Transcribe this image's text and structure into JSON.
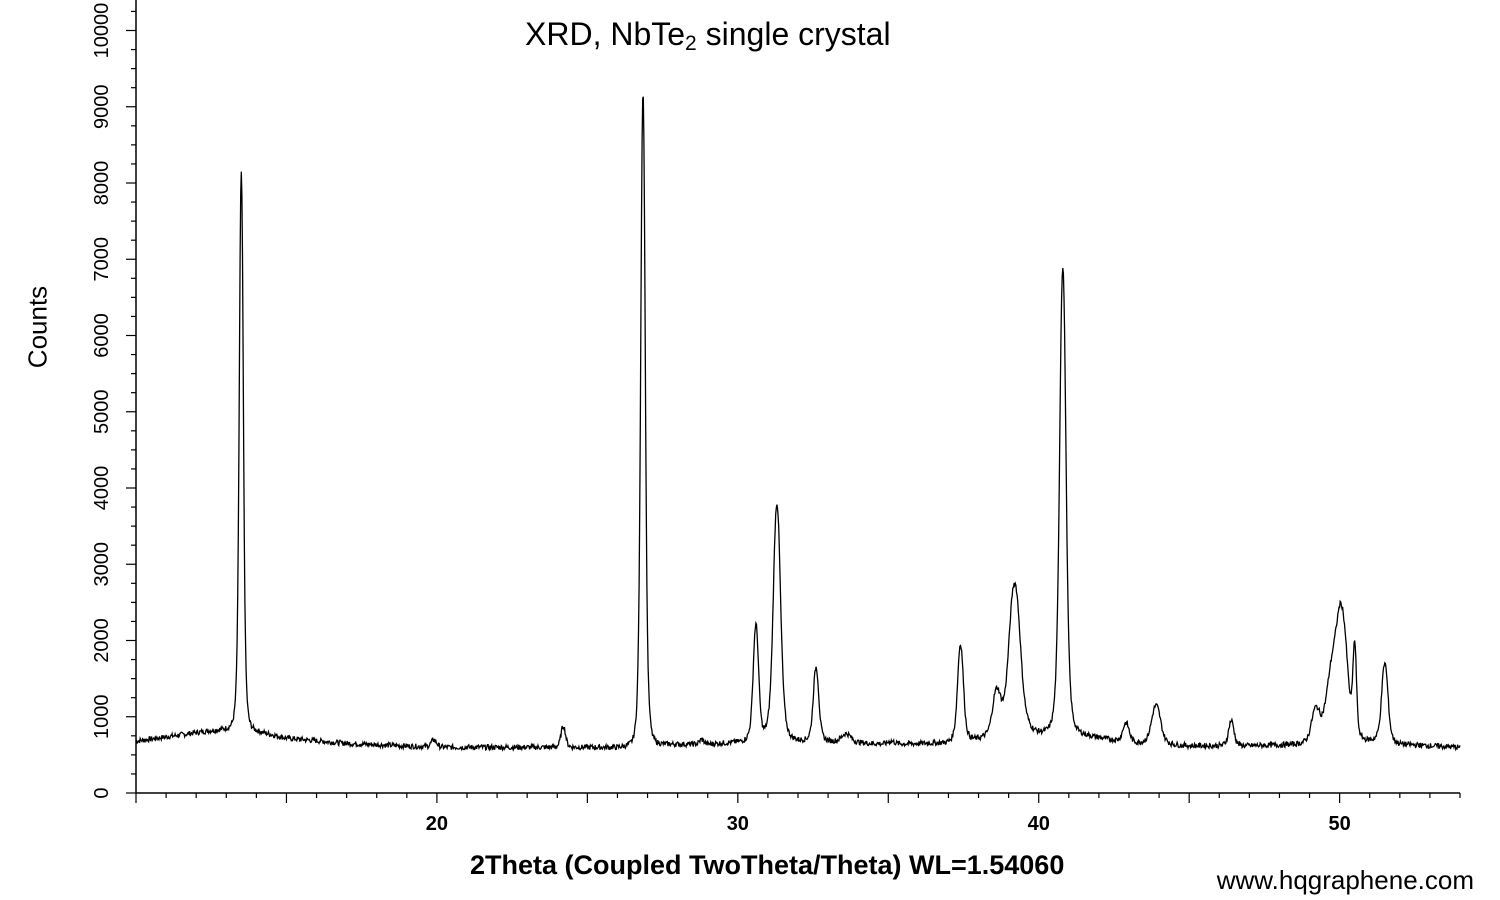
{
  "chart_data": {
    "type": "line",
    "title_main": "XRD, NbTe",
    "title_sub": "2",
    "title_rest": " single crystal",
    "xlabel": "2Theta (Coupled TwoTheta/Theta) WL=1.54060",
    "ylabel": "Counts",
    "xlim": [
      10,
      54
    ],
    "ylim": [
      0,
      10400
    ],
    "x_ticks": [
      20,
      30,
      40,
      50
    ],
    "y_ticks": [
      0,
      1000,
      2000,
      3000,
      4000,
      5000,
      6000,
      7000,
      8000,
      9000,
      10000
    ],
    "line_color": "#000000",
    "grid": false,
    "baseline": [
      [
        10,
        680
      ],
      [
        12.5,
        820
      ],
      [
        13.5,
        860
      ],
      [
        15,
        720
      ],
      [
        17,
        650
      ],
      [
        20,
        600
      ],
      [
        24,
        600
      ],
      [
        26,
        600
      ],
      [
        27,
        640
      ],
      [
        29,
        640
      ],
      [
        31,
        700
      ],
      [
        33,
        680
      ],
      [
        35,
        640
      ],
      [
        37,
        660
      ],
      [
        39,
        760
      ],
      [
        41,
        800
      ],
      [
        43,
        660
      ],
      [
        45,
        620
      ],
      [
        47,
        620
      ],
      [
        49,
        640
      ],
      [
        51,
        680
      ],
      [
        52,
        640
      ],
      [
        54,
        600
      ]
    ],
    "peaks": [
      {
        "x": 13.5,
        "height": 8120,
        "width": 0.09
      },
      {
        "x": 19.9,
        "height": 700,
        "width": 0.12
      },
      {
        "x": 24.2,
        "height": 880,
        "width": 0.1
      },
      {
        "x": 26.85,
        "height": 9200,
        "width": 0.1
      },
      {
        "x": 28.8,
        "height": 700,
        "width": 0.1
      },
      {
        "x": 30.6,
        "height": 2200,
        "width": 0.12
      },
      {
        "x": 31.3,
        "height": 3800,
        "width": 0.16
      },
      {
        "x": 32.6,
        "height": 1650,
        "width": 0.12
      },
      {
        "x": 33.6,
        "height": 780,
        "width": 0.2
      },
      {
        "x": 35.1,
        "height": 680,
        "width": 0.15
      },
      {
        "x": 37.4,
        "height": 1950,
        "width": 0.13
      },
      {
        "x": 38.6,
        "height": 1300,
        "width": 0.18
      },
      {
        "x": 39.2,
        "height": 2750,
        "width": 0.25
      },
      {
        "x": 40.8,
        "height": 6900,
        "width": 0.14
      },
      {
        "x": 42.9,
        "height": 920,
        "width": 0.14
      },
      {
        "x": 43.9,
        "height": 1150,
        "width": 0.2
      },
      {
        "x": 46.4,
        "height": 950,
        "width": 0.12
      },
      {
        "x": 49.2,
        "height": 1050,
        "width": 0.18
      },
      {
        "x": 49.8,
        "height": 1650,
        "width": 0.3
      },
      {
        "x": 50.1,
        "height": 2000,
        "width": 0.22
      },
      {
        "x": 50.5,
        "height": 1820,
        "width": 0.08
      },
      {
        "x": 51.5,
        "height": 1700,
        "width": 0.14
      }
    ]
  },
  "watermark": "www.hqgraphene.com"
}
